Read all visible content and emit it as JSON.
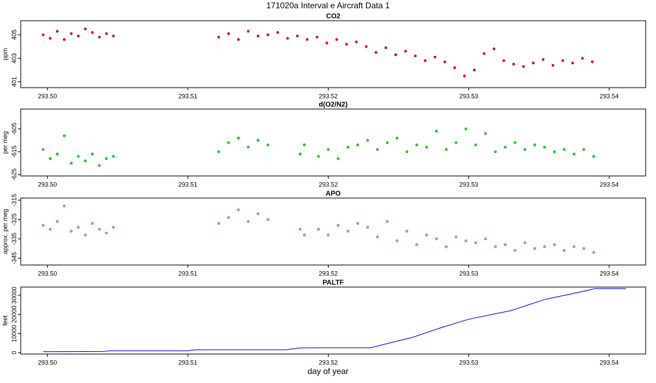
{
  "title": "171020a   Interval e Aircraft Data 1",
  "xlabel": "day of year",
  "chart_data": [
    {
      "type": "scatter",
      "title": "CO2",
      "ylabel": "ppm",
      "color": "#ff0000",
      "xlim": [
        293.4981,
        293.5426
      ],
      "ylim": [
        400.5,
        406.2
      ],
      "xticks": [
        {
          "value": 293.5,
          "label": "293.50"
        },
        293.51,
        293.52,
        293.53,
        293.54
      ],
      "yticks": [
        401,
        403,
        405
      ],
      "x": [
        293.4997,
        293.5002,
        293.5007,
        293.5012,
        293.5017,
        293.5022,
        293.5027,
        293.5032,
        293.5037,
        293.5042,
        293.5047,
        293.5122,
        293.5129,
        293.5136,
        293.5143,
        293.515,
        293.5157,
        293.5164,
        293.5171,
        293.5178,
        293.5185,
        293.5192,
        293.5199,
        293.5206,
        293.5213,
        293.522,
        293.5227,
        293.5234,
        293.5241,
        293.5248,
        293.5255,
        293.5262,
        293.5269,
        293.5276,
        293.5283,
        293.529,
        293.5297,
        293.5304,
        293.5311,
        293.5318,
        293.5325,
        293.5332,
        293.5339,
        293.5346,
        293.5353,
        293.536,
        293.5367,
        293.5374,
        293.5381,
        293.5388
      ],
      "values": [
        405.0,
        404.7,
        405.3,
        404.6,
        405.1,
        404.9,
        405.5,
        405.2,
        404.8,
        405.1,
        404.9,
        404.8,
        405.1,
        404.6,
        405.3,
        404.9,
        405.0,
        405.2,
        404.7,
        404.9,
        404.6,
        404.8,
        404.3,
        404.6,
        404.2,
        404.4,
        404.0,
        403.5,
        403.9,
        403.3,
        403.6,
        403.2,
        402.8,
        403.1,
        402.7,
        402.2,
        401.5,
        402.0,
        403.4,
        403.8,
        402.8,
        402.5,
        402.3,
        402.6,
        402.9,
        402.4,
        402.8,
        402.6,
        403.0,
        402.7
      ]
    },
    {
      "type": "scatter",
      "title": "d(O2/N2)",
      "ylabel": "per meg",
      "color": "#00ee00",
      "xlim": [
        293.4981,
        293.5426
      ],
      "ylim": [
        -625.6,
        -596.3
      ],
      "xticks": [
        {
          "value": 293.5,
          "label": "293.50"
        },
        293.51,
        293.52,
        293.53,
        293.54
      ],
      "yticks": [
        -625,
        -615,
        -605
      ],
      "x": [
        293.4997,
        293.5002,
        293.5007,
        293.5012,
        293.5017,
        293.5022,
        293.5027,
        293.5032,
        293.5037,
        293.5042,
        293.5047,
        293.5122,
        293.5129,
        293.5136,
        293.5143,
        293.515,
        293.5157,
        293.518,
        293.5183,
        293.5193,
        293.52,
        293.5207,
        293.5214,
        293.5221,
        293.5228,
        293.5235,
        293.5242,
        293.5249,
        293.5256,
        293.5263,
        293.527,
        293.5277,
        293.5284,
        293.5291,
        293.5298,
        293.5305,
        293.5312,
        293.5319,
        293.5326,
        293.5333,
        293.534,
        293.5347,
        293.5354,
        293.5361,
        293.5368,
        293.5375,
        293.5382,
        293.5389
      ],
      "values": [
        -614,
        -618,
        -616,
        -608,
        -620,
        -617,
        -619,
        -616,
        -621,
        -618,
        -617,
        -615,
        -611,
        -609,
        -613,
        -610,
        -612,
        -616,
        -612,
        -617,
        -614,
        -618,
        -613,
        -612,
        -610,
        -614,
        -611,
        -609,
        -615,
        -612,
        -613,
        -606,
        -614,
        -611,
        -605,
        -612,
        -607,
        -615,
        -613,
        -611,
        -614,
        -612,
        -613,
        -615,
        -614,
        -616,
        -614,
        -617
      ]
    },
    {
      "type": "scatter",
      "title": "APO",
      "ylabel": "approx. per meg",
      "color": "#ee82ee",
      "xlim": [
        293.4981,
        293.5426
      ],
      "ylim": [
        -348.5,
        -313.9
      ],
      "xticks": [
        {
          "value": 293.5,
          "label": "293.50"
        },
        293.51,
        293.52,
        293.53,
        293.54
      ],
      "yticks": [
        -345,
        -335,
        -325,
        -315
      ],
      "x": [
        293.4997,
        293.5002,
        293.5007,
        293.5012,
        293.5017,
        293.5022,
        293.5027,
        293.5032,
        293.5037,
        293.5042,
        293.5047,
        293.5122,
        293.5129,
        293.5136,
        293.5143,
        293.515,
        293.5157,
        293.518,
        293.5183,
        293.5193,
        293.52,
        293.5207,
        293.5214,
        293.5221,
        293.5228,
        293.5235,
        293.5242,
        293.5249,
        293.5256,
        293.5263,
        293.527,
        293.5277,
        293.5284,
        293.5291,
        293.5298,
        293.5305,
        293.5312,
        293.5319,
        293.5326,
        293.5333,
        293.534,
        293.5347,
        293.5354,
        293.5361,
        293.5368,
        293.5375,
        293.5382,
        293.5389
      ],
      "values": [
        -328,
        -330,
        -326,
        -318,
        -331,
        -329,
        -333,
        -327,
        -330,
        -332,
        -329,
        -327,
        -324,
        -320,
        -326,
        -322,
        -325,
        -330,
        -333,
        -330,
        -333,
        -328,
        -331,
        -327,
        -329,
        -334,
        -326,
        -336,
        -331,
        -338,
        -333,
        -335,
        -339,
        -334,
        -336,
        -337,
        -335,
        -339,
        -338,
        -341,
        -337,
        -340,
        -339,
        -338,
        -341,
        -339,
        -340,
        -342
      ]
    },
    {
      "type": "line",
      "title": "PALTF",
      "ylabel": "feet",
      "color": "#0000ff",
      "xlim": [
        293.4981,
        293.5426
      ],
      "ylim": [
        -700,
        34300
      ],
      "xticks": [
        {
          "value": 293.5,
          "label": "293.50"
        },
        293.51,
        293.52,
        293.53,
        293.54
      ],
      "yticks": [
        0,
        10000,
        20000,
        30000
      ],
      "x": [
        293.4997,
        293.504,
        293.5045,
        293.51,
        293.5105,
        293.517,
        293.518,
        293.52,
        293.523,
        293.526,
        293.528,
        293.53,
        293.533,
        293.5355,
        293.5375,
        293.539,
        293.5412
      ],
      "values": [
        500,
        600,
        1000,
        1000,
        1500,
        1500,
        2500,
        2600,
        2600,
        8000,
        13000,
        17500,
        22000,
        28000,
        31000,
        33500,
        33500
      ]
    }
  ]
}
